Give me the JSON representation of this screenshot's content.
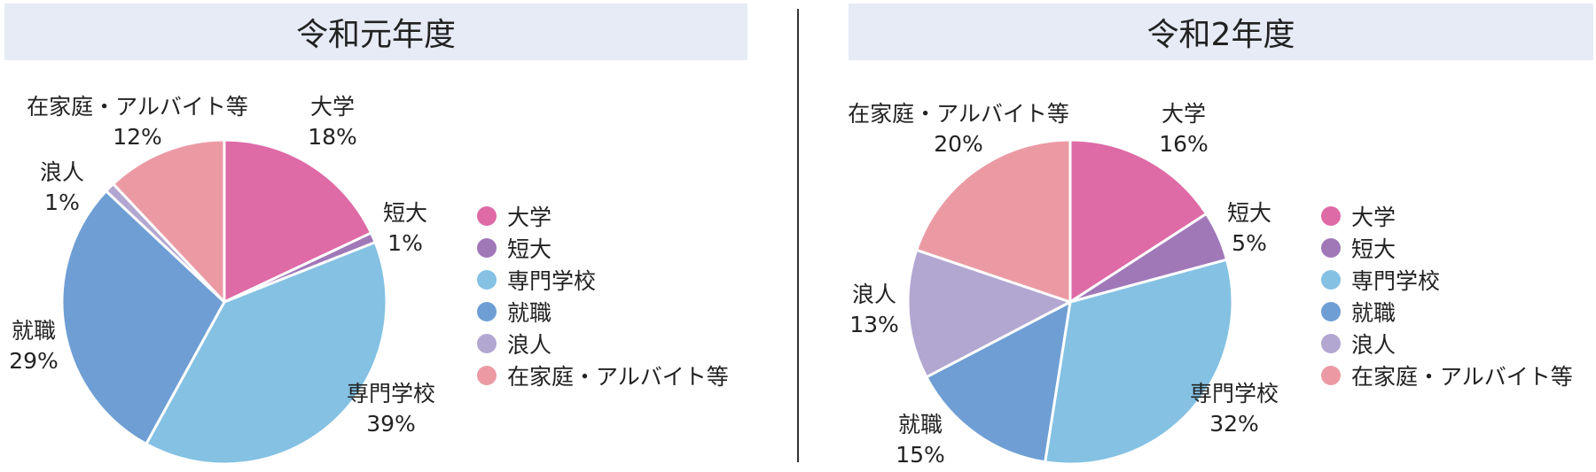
{
  "chart_data": [
    {
      "type": "pie",
      "title": "令和元年度",
      "categories": [
        "大学",
        "短大",
        "専門学校",
        "就職",
        "浪人",
        "在家庭・アルバイト等"
      ],
      "values": [
        18,
        1,
        39,
        29,
        1,
        12
      ],
      "value_labels": [
        "18%",
        "1%",
        "39%",
        "29%",
        "1%",
        "12%"
      ],
      "colors": [
        "#de6aa6",
        "#a078b8",
        "#84c1e3",
        "#6e9ed4",
        "#b2a7d1",
        "#eb9aa4"
      ],
      "legend": [
        "大学",
        "短大",
        "専門学校",
        "就職",
        "浪人",
        "在家庭・アルバイト等"
      ],
      "legend_position": "right"
    },
    {
      "type": "pie",
      "title": "令和2年度",
      "categories": [
        "大学",
        "短大",
        "専門学校",
        "就職",
        "浪人",
        "在家庭・アルバイト等"
      ],
      "values": [
        16,
        5,
        32,
        15,
        13,
        20
      ],
      "value_labels": [
        "16%",
        "5%",
        "32%",
        "15%",
        "13%",
        "20%"
      ],
      "colors": [
        "#de6aa6",
        "#a078b8",
        "#84c1e3",
        "#6e9ed4",
        "#b2a7d1",
        "#eb9aa4"
      ],
      "legend": [
        "大学",
        "短大",
        "専門学校",
        "就職",
        "浪人",
        "在家庭・アルバイト等"
      ],
      "legend_position": "right"
    }
  ]
}
